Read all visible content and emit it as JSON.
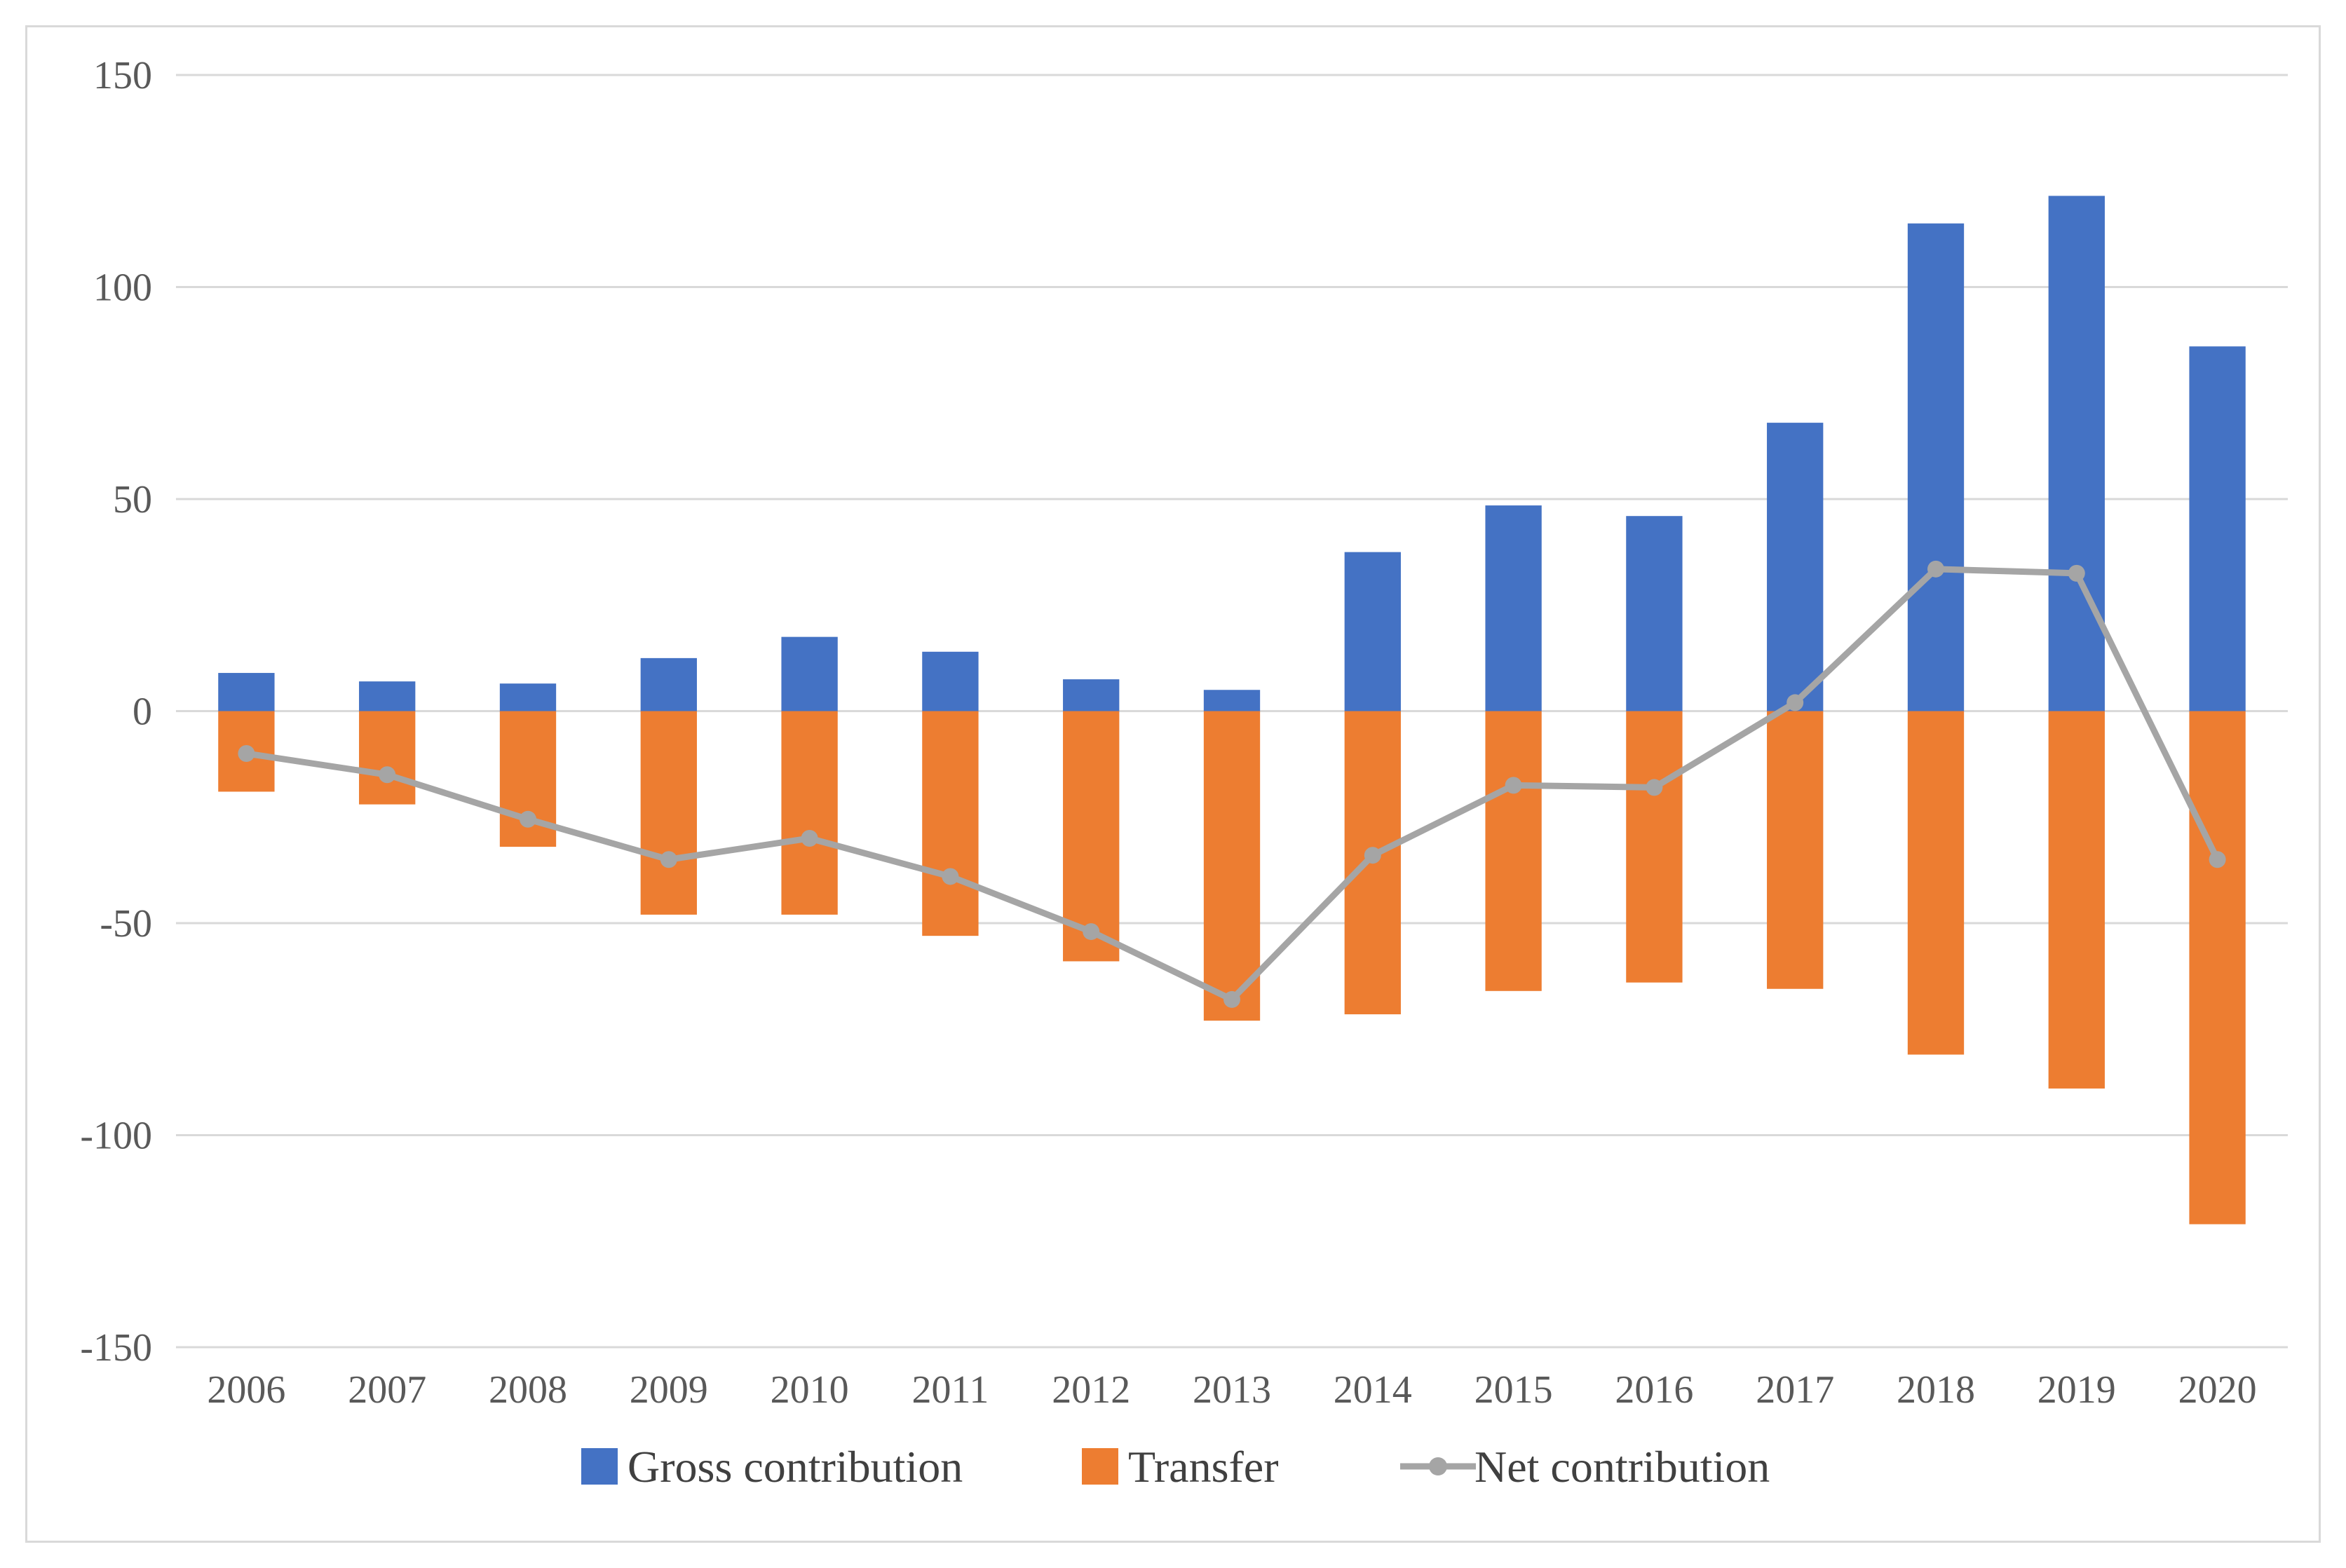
{
  "chart_data": {
    "type": "bar",
    "categories": [
      "2006",
      "2007",
      "2008",
      "2009",
      "2010",
      "2011",
      "2012",
      "2013",
      "2014",
      "2015",
      "2016",
      "2017",
      "2018",
      "2019",
      "2020"
    ],
    "series": [
      {
        "name": "Gross contribution",
        "type": "bar",
        "color": "#4472c4",
        "values": [
          9,
          7,
          6.5,
          12.5,
          17.5,
          14,
          7.5,
          5,
          37.5,
          48.5,
          46,
          68,
          115,
          121.5,
          86
        ]
      },
      {
        "name": "Transfer",
        "type": "bar",
        "color": "#ed7d31",
        "values": [
          -19,
          -22,
          -32,
          -48,
          -48,
          -53,
          -59,
          -73,
          -71.5,
          -66,
          -64,
          -65.5,
          -81,
          -89,
          -121
        ]
      },
      {
        "name": "Net contribution",
        "type": "line",
        "color": "#a5a5a5",
        "values": [
          -10,
          -15,
          -25.5,
          -35,
          -30,
          -39,
          -52,
          -68,
          -34,
          -17.5,
          -18,
          2,
          33.5,
          32.5,
          -35
        ]
      }
    ],
    "yticks": [
      "150",
      "100",
      "50",
      "0",
      "-50",
      "-100",
      "-150"
    ],
    "ylim": [
      -150,
      150
    ],
    "grid": true,
    "legend": "bottom",
    "title": "",
    "xlabel": "",
    "ylabel": ""
  }
}
